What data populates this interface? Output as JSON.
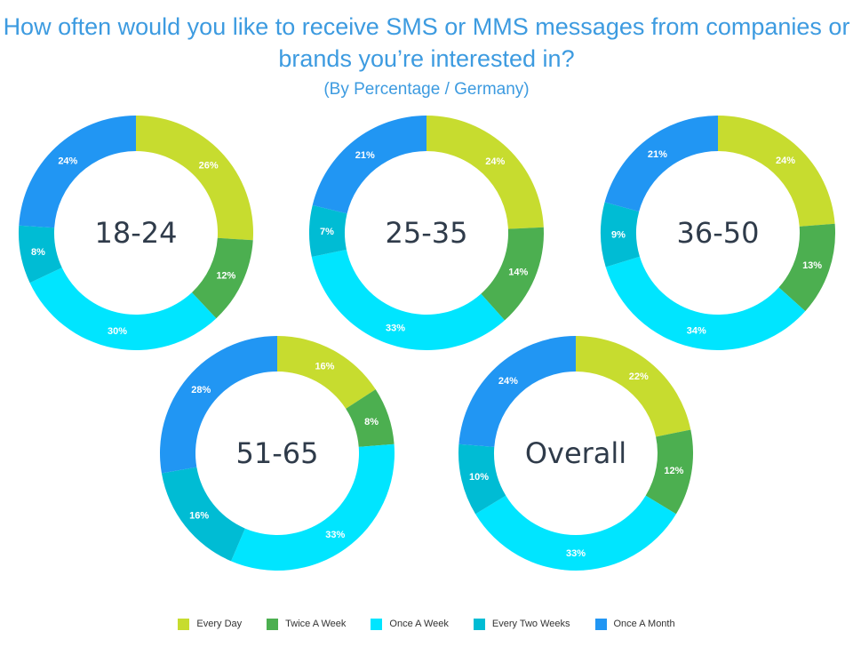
{
  "title": "How often would you like to receive SMS or MMS messages from companies or brands you’re interested in?",
  "subtitle": "(By Percentage / Germany)",
  "colors": [
    "#c7dc2f",
    "#4caf50",
    "#00e5ff",
    "#00bcd4",
    "#2196f3"
  ],
  "chart_data": {
    "type": "pie",
    "categories": [
      "Every Day",
      "Twice A Week",
      "Once A Week",
      "Every Two Weeks",
      "Once A Month"
    ],
    "charts": [
      {
        "label": "18-24",
        "values": [
          26,
          12,
          30,
          8,
          24
        ]
      },
      {
        "label": "25-35",
        "values": [
          24,
          14,
          33,
          7,
          21
        ]
      },
      {
        "label": "36-50",
        "values": [
          24,
          13,
          34,
          9,
          21
        ]
      },
      {
        "label": "51-65",
        "values": [
          16,
          8,
          33,
          16,
          28
        ]
      },
      {
        "label": "Overall",
        "values": [
          22,
          12,
          33,
          10,
          24
        ]
      }
    ],
    "value_suffix": "%",
    "legend_position": "bottom"
  }
}
